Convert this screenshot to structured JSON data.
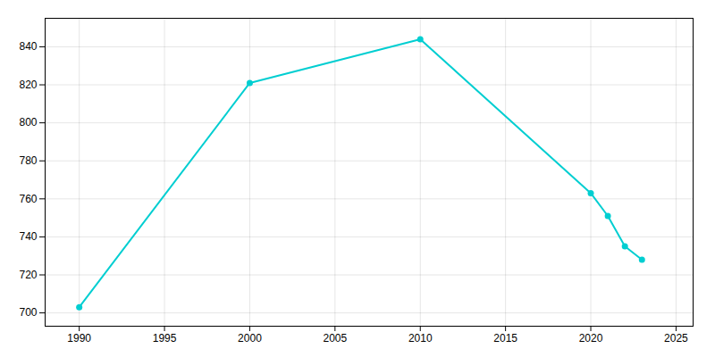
{
  "chart_data": {
    "type": "line",
    "x": [
      1990,
      2000,
      2010,
      2020,
      2021,
      2022,
      2023
    ],
    "values": [
      703,
      821,
      844,
      763,
      751,
      735,
      728
    ],
    "color": "#00CED1",
    "marker": "o",
    "xlim": [
      1988,
      2026
    ],
    "ylim": [
      693,
      855
    ],
    "xticks": [
      1990,
      1995,
      2000,
      2005,
      2010,
      2015,
      2020,
      2025
    ],
    "yticks": [
      700,
      720,
      740,
      760,
      780,
      800,
      820,
      840
    ],
    "grid": true
  }
}
